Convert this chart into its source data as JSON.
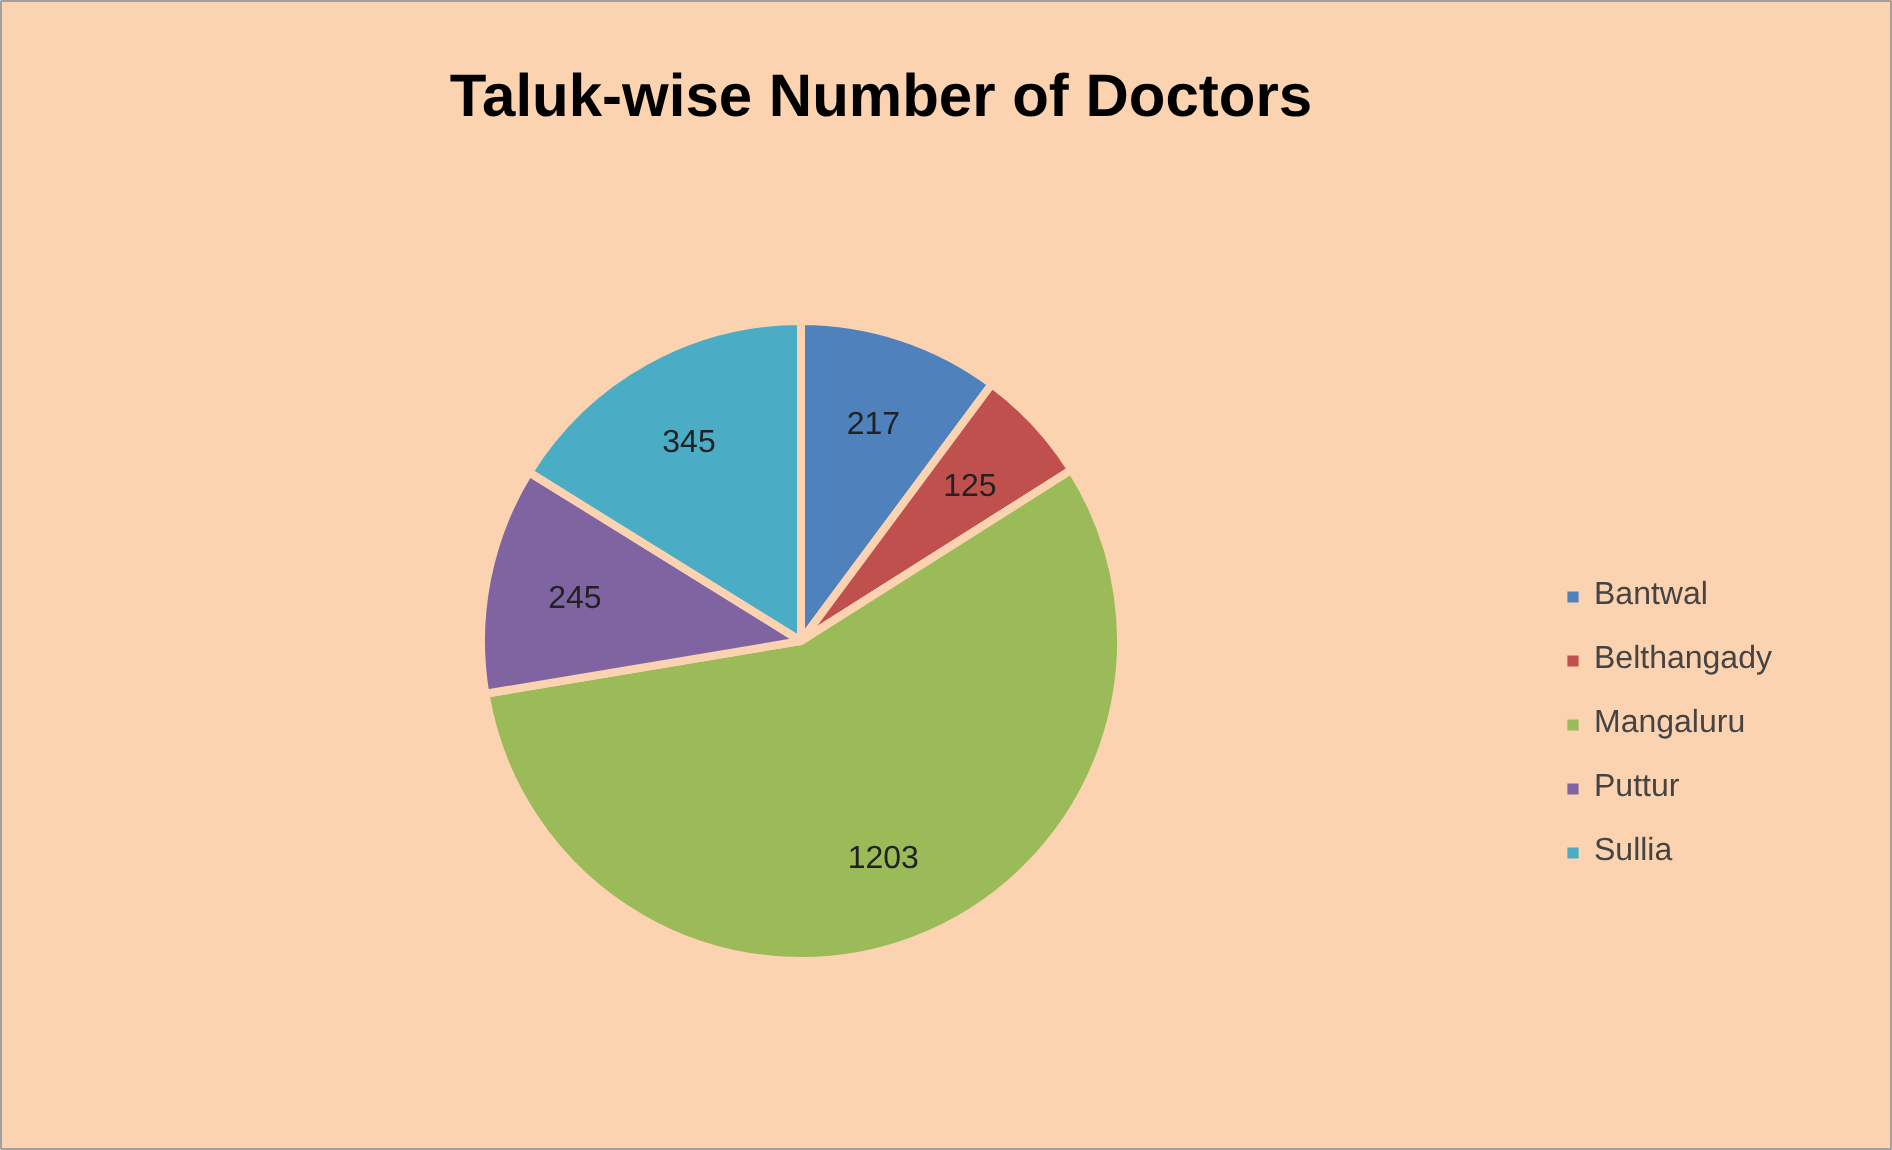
{
  "chart_data": {
    "type": "pie",
    "title": "Taluk-wise Number of Doctors",
    "categories": [
      "Bantwal",
      "Belthangady",
      "Mangaluru",
      "Puttur",
      "Sullia"
    ],
    "values": [
      217,
      125,
      1203,
      245,
      345
    ],
    "colors": [
      "#4f81bd",
      "#c0504d",
      "#9bbb59",
      "#8064a2",
      "#4bacc6"
    ],
    "data_labels": true,
    "legend": "right"
  }
}
